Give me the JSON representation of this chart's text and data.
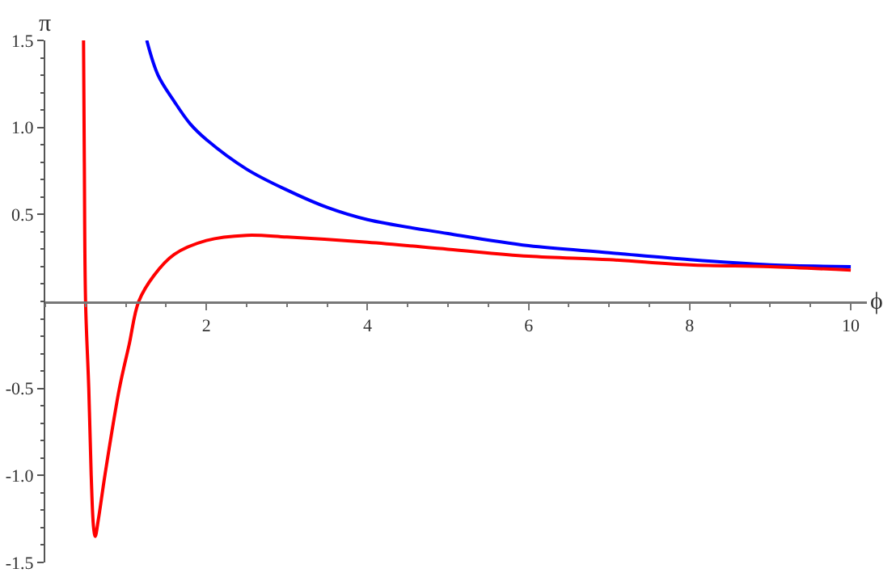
{
  "chart_data": {
    "type": "line",
    "xlabel": "ϕ",
    "ylabel": "π",
    "xlim": [
      0,
      10.2
    ],
    "ylim": [
      -1.5,
      1.5
    ],
    "xticks": [
      2,
      4,
      6,
      8,
      10
    ],
    "yticks": [
      {
        "value": -1.5,
        "label": "-1.5"
      },
      {
        "value": -1,
        "label": "-1.0"
      },
      {
        "value": -0.5,
        "label": "-0.5"
      },
      {
        "value": 0.5,
        "label": "0.5"
      },
      {
        "value": 1,
        "label": "1.0"
      },
      {
        "value": 1.5,
        "label": "1.5"
      }
    ],
    "grid": false,
    "marker": "none",
    "line_style": "solid",
    "series": [
      {
        "color": "#0000ff",
        "x": [
          1.26,
          1.4,
          1.6,
          1.8,
          2,
          2.5,
          3,
          3.5,
          4,
          5,
          6,
          7,
          8,
          9,
          10
        ],
        "values": [
          1.5,
          1.3,
          1.15,
          1.02,
          0.93,
          0.76,
          0.64,
          0.54,
          0.47,
          0.39,
          0.32,
          0.28,
          0.24,
          0.21,
          0.2
        ]
      },
      {
        "color": "#ff0000",
        "x": [
          0.475,
          0.485,
          0.5,
          0.54,
          0.57,
          0.6,
          0.62,
          0.66,
          0.74,
          0.92,
          1.04,
          1.16,
          1.35,
          1.6,
          2,
          2.5,
          3,
          4,
          5,
          6,
          7,
          8,
          9,
          10
        ],
        "values": [
          1.5,
          0.8,
          0,
          -0.5,
          -1.0,
          -1.3,
          -1.35,
          -1.25,
          -1.0,
          -0.5,
          -0.25,
          0,
          0.15,
          0.27,
          0.35,
          0.38,
          0.37,
          0.34,
          0.3,
          0.26,
          0.24,
          0.21,
          0.2,
          0.18
        ]
      }
    ]
  }
}
